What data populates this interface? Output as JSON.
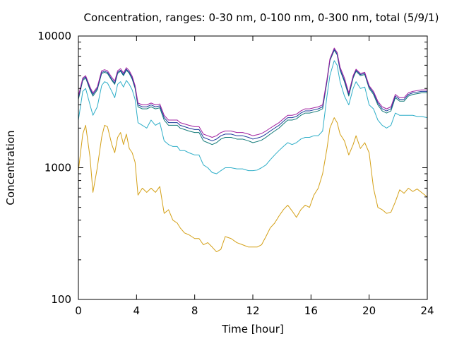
{
  "chart_data": {
    "type": "line",
    "title": "Concentration, ranges: 0-30 nm, 0-100 nm, 0-300 nm, total (5/9/1)",
    "xlabel": "Time [hour]",
    "ylabel": "Concentration",
    "xlim": [
      0,
      24
    ],
    "ylim": [
      100,
      10000
    ],
    "yscale": "log",
    "x_ticks": [
      0,
      4,
      8,
      12,
      16,
      20,
      24
    ],
    "x_tick_labels": [
      "0",
      "4",
      "8",
      "12",
      "16",
      "20",
      "24"
    ],
    "y_ticks": [
      100,
      1000,
      10000
    ],
    "y_tick_labels": [
      "100",
      "1000",
      "10000"
    ],
    "grid": false,
    "legend": "none",
    "series": [
      {
        "color": "#d4a017",
        "x": [
          0.0,
          0.3,
          0.5,
          0.8,
          1.0,
          1.3,
          1.6,
          1.8,
          2.0,
          2.3,
          2.5,
          2.7,
          2.9,
          3.1,
          3.3,
          3.5,
          3.7,
          3.9,
          4.1,
          4.4,
          4.7,
          5.0,
          5.3,
          5.6,
          5.9,
          6.2,
          6.5,
          6.8,
          7.0,
          7.3,
          7.6,
          8.0,
          8.3,
          8.6,
          8.9,
          9.2,
          9.5,
          9.8,
          10.1,
          10.5,
          10.9,
          11.3,
          11.7,
          12.0,
          12.3,
          12.6,
          12.9,
          13.2,
          13.5,
          13.8,
          14.1,
          14.4,
          14.7,
          15.0,
          15.3,
          15.6,
          15.9,
          16.2,
          16.5,
          16.8,
          17.1,
          17.3,
          17.6,
          17.8,
          18.0,
          18.3,
          18.6,
          18.9,
          19.1,
          19.4,
          19.7,
          20.0,
          20.3,
          20.6,
          20.9,
          21.2,
          21.5,
          21.8,
          22.1,
          22.4,
          22.7,
          23.0,
          23.3,
          23.6,
          24.0
        ],
        "values": [
          950,
          1800,
          2100,
          1200,
          650,
          1000,
          1700,
          2100,
          2050,
          1500,
          1300,
          1700,
          1850,
          1500,
          1800,
          1400,
          1300,
          1100,
          620,
          700,
          650,
          700,
          650,
          720,
          450,
          480,
          400,
          380,
          350,
          320,
          310,
          290,
          290,
          260,
          270,
          250,
          230,
          240,
          300,
          290,
          270,
          260,
          250,
          250,
          250,
          260,
          300,
          350,
          380,
          430,
          480,
          520,
          470,
          420,
          480,
          520,
          500,
          620,
          700,
          900,
          1400,
          2000,
          2400,
          2200,
          1800,
          1600,
          1250,
          1500,
          1750,
          1400,
          1550,
          1300,
          700,
          500,
          480,
          450,
          460,
          550,
          680,
          640,
          700,
          660,
          690,
          650,
          600
        ]
      },
      {
        "color": "#2eaec8",
        "x": [
          0.0,
          0.3,
          0.5,
          0.8,
          1.0,
          1.3,
          1.6,
          1.8,
          2.0,
          2.3,
          2.5,
          2.7,
          2.9,
          3.1,
          3.3,
          3.5,
          3.7,
          3.9,
          4.1,
          4.4,
          4.7,
          5.0,
          5.3,
          5.6,
          5.9,
          6.2,
          6.5,
          6.8,
          7.0,
          7.3,
          7.6,
          8.0,
          8.3,
          8.6,
          8.9,
          9.2,
          9.5,
          9.8,
          10.1,
          10.5,
          10.9,
          11.3,
          11.7,
          12.0,
          12.3,
          12.6,
          12.9,
          13.2,
          13.5,
          13.8,
          14.1,
          14.4,
          14.7,
          15.0,
          15.3,
          15.6,
          15.9,
          16.2,
          16.5,
          16.8,
          17.1,
          17.3,
          17.6,
          17.8,
          18.0,
          18.3,
          18.6,
          18.9,
          19.1,
          19.4,
          19.7,
          20.0,
          20.3,
          20.6,
          20.9,
          21.2,
          21.5,
          21.8,
          22.1,
          22.4,
          22.7,
          23.0,
          23.3,
          23.6,
          24.0
        ],
        "values": [
          2300,
          3800,
          4000,
          3000,
          2500,
          2900,
          4200,
          4500,
          4400,
          3800,
          3400,
          4300,
          4500,
          4100,
          4600,
          4300,
          3900,
          3300,
          2200,
          2100,
          2000,
          2300,
          2100,
          2200,
          1600,
          1500,
          1450,
          1450,
          1350,
          1350,
          1300,
          1250,
          1250,
          1050,
          1000,
          920,
          900,
          950,
          1000,
          1000,
          980,
          980,
          950,
          950,
          960,
          1000,
          1050,
          1150,
          1250,
          1350,
          1450,
          1550,
          1500,
          1550,
          1650,
          1700,
          1700,
          1750,
          1750,
          1900,
          3500,
          5000,
          6500,
          6000,
          4500,
          3500,
          3000,
          4000,
          4500,
          4000,
          4100,
          3000,
          2800,
          2300,
          2100,
          2000,
          2100,
          2600,
          2500,
          2500,
          2500,
          2500,
          2450,
          2450,
          2400
        ]
      },
      {
        "color": "#117a78",
        "x": [
          0.0,
          0.3,
          0.5,
          0.8,
          1.0,
          1.3,
          1.6,
          1.8,
          2.0,
          2.3,
          2.5,
          2.7,
          2.9,
          3.1,
          3.3,
          3.5,
          3.7,
          3.9,
          4.1,
          4.4,
          4.7,
          5.0,
          5.3,
          5.6,
          5.9,
          6.2,
          6.5,
          6.8,
          7.0,
          7.3,
          7.6,
          8.0,
          8.3,
          8.6,
          8.9,
          9.2,
          9.5,
          9.8,
          10.1,
          10.5,
          10.9,
          11.3,
          11.7,
          12.0,
          12.3,
          12.6,
          12.9,
          13.2,
          13.5,
          13.8,
          14.1,
          14.4,
          14.7,
          15.0,
          15.3,
          15.6,
          15.9,
          16.2,
          16.5,
          16.8,
          17.1,
          17.3,
          17.6,
          17.8,
          18.0,
          18.3,
          18.6,
          18.9,
          19.1,
          19.4,
          19.7,
          20.0,
          20.3,
          20.6,
          20.9,
          21.2,
          21.5,
          21.8,
          22.1,
          22.4,
          22.7,
          23.0,
          23.3,
          23.6,
          24.0
        ],
        "values": [
          3300,
          4600,
          4800,
          3900,
          3500,
          3900,
          5200,
          5300,
          5200,
          4600,
          4300,
          5200,
          5400,
          5000,
          5500,
          5200,
          4700,
          4000,
          2900,
          2800,
          2800,
          2900,
          2800,
          2850,
          2300,
          2100,
          2100,
          2100,
          2000,
          1950,
          1900,
          1850,
          1850,
          1600,
          1550,
          1500,
          1550,
          1650,
          1700,
          1700,
          1650,
          1650,
          1600,
          1550,
          1580,
          1620,
          1700,
          1800,
          1900,
          2000,
          2150,
          2300,
          2300,
          2350,
          2500,
          2600,
          2600,
          2650,
          2700,
          2800,
          4500,
          6500,
          7800,
          7200,
          5500,
          4500,
          3500,
          4800,
          5400,
          5000,
          5100,
          4000,
          3600,
          3000,
          2700,
          2600,
          2700,
          3400,
          3200,
          3200,
          3500,
          3600,
          3650,
          3700,
          3700
        ]
      },
      {
        "color": "#1a3a9a",
        "x": [
          0.0,
          0.3,
          0.5,
          0.8,
          1.0,
          1.3,
          1.6,
          1.8,
          2.0,
          2.3,
          2.5,
          2.7,
          2.9,
          3.1,
          3.3,
          3.5,
          3.7,
          3.9,
          4.1,
          4.4,
          4.7,
          5.0,
          5.3,
          5.6,
          5.9,
          6.2,
          6.5,
          6.8,
          7.0,
          7.3,
          7.6,
          8.0,
          8.3,
          8.6,
          8.9,
          9.2,
          9.5,
          9.8,
          10.1,
          10.5,
          10.9,
          11.3,
          11.7,
          12.0,
          12.3,
          12.6,
          12.9,
          13.2,
          13.5,
          13.8,
          14.1,
          14.4,
          14.7,
          15.0,
          15.3,
          15.6,
          15.9,
          16.2,
          16.5,
          16.8,
          17.1,
          17.3,
          17.6,
          17.8,
          18.0,
          18.3,
          18.6,
          18.9,
          19.1,
          19.4,
          19.7,
          20.0,
          20.3,
          20.6,
          20.9,
          21.2,
          21.5,
          21.8,
          22.1,
          22.4,
          22.7,
          23.0,
          23.3,
          23.6,
          24.0
        ],
        "values": [
          3400,
          4700,
          4900,
          4000,
          3600,
          4000,
          5300,
          5400,
          5300,
          4700,
          4400,
          5300,
          5500,
          5100,
          5600,
          5300,
          4800,
          4100,
          3000,
          2900,
          2900,
          3000,
          2900,
          2950,
          2400,
          2200,
          2200,
          2200,
          2100,
          2050,
          2000,
          1950,
          1950,
          1700,
          1650,
          1600,
          1650,
          1750,
          1800,
          1800,
          1750,
          1750,
          1700,
          1650,
          1680,
          1720,
          1800,
          1900,
          2000,
          2100,
          2250,
          2400,
          2400,
          2450,
          2600,
          2700,
          2700,
          2750,
          2800,
          2900,
          4600,
          6600,
          7900,
          7300,
          5600,
          4600,
          3600,
          4900,
          5500,
          5100,
          5200,
          4100,
          3700,
          3100,
          2800,
          2700,
          2800,
          3500,
          3300,
          3300,
          3600,
          3700,
          3750,
          3800,
          3800
        ]
      },
      {
        "color": "#a020a0",
        "x": [
          0.0,
          0.3,
          0.5,
          0.8,
          1.0,
          1.3,
          1.6,
          1.8,
          2.0,
          2.3,
          2.5,
          2.7,
          2.9,
          3.1,
          3.3,
          3.5,
          3.7,
          3.9,
          4.1,
          4.4,
          4.7,
          5.0,
          5.3,
          5.6,
          5.9,
          6.2,
          6.5,
          6.8,
          7.0,
          7.3,
          7.6,
          8.0,
          8.3,
          8.6,
          8.9,
          9.2,
          9.5,
          9.8,
          10.1,
          10.5,
          10.9,
          11.3,
          11.7,
          12.0,
          12.3,
          12.6,
          12.9,
          13.2,
          13.5,
          13.8,
          14.1,
          14.4,
          14.7,
          15.0,
          15.3,
          15.6,
          15.9,
          16.2,
          16.5,
          16.8,
          17.1,
          17.3,
          17.6,
          17.8,
          18.0,
          18.3,
          18.6,
          18.9,
          19.1,
          19.4,
          19.7,
          20.0,
          20.3,
          20.6,
          20.9,
          21.2,
          21.5,
          21.8,
          22.1,
          22.4,
          22.7,
          23.0,
          23.3,
          23.6,
          24.0
        ],
        "values": [
          3500,
          4800,
          5000,
          4100,
          3700,
          4100,
          5450,
          5550,
          5450,
          4850,
          4550,
          5450,
          5650,
          5250,
          5750,
          5450,
          4950,
          4200,
          3100,
          3000,
          3000,
          3100,
          3000,
          3050,
          2500,
          2300,
          2300,
          2300,
          2200,
          2150,
          2100,
          2050,
          2050,
          1800,
          1750,
          1700,
          1750,
          1850,
          1900,
          1900,
          1850,
          1850,
          1800,
          1750,
          1780,
          1820,
          1900,
          2000,
          2100,
          2200,
          2350,
          2500,
          2500,
          2550,
          2700,
          2800,
          2800,
          2850,
          2900,
          3000,
          4700,
          6700,
          8100,
          7500,
          5800,
          4800,
          3700,
          5000,
          5600,
          5200,
          5300,
          4200,
          3800,
          3200,
          2900,
          2800,
          2900,
          3600,
          3400,
          3400,
          3700,
          3800,
          3850,
          3900,
          3900
        ]
      }
    ]
  }
}
